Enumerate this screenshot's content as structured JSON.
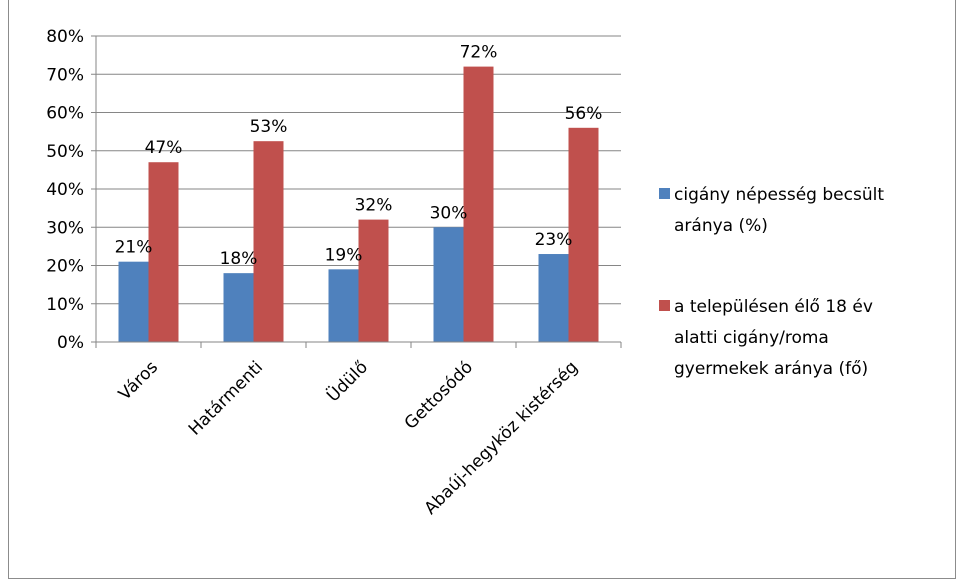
{
  "chart_data": {
    "type": "bar",
    "categories": [
      "Város",
      "Határmenti",
      "Üdülő",
      "Gettosódó",
      "Abaúj-hegyköz kistérség"
    ],
    "series": [
      {
        "name": "cigány népesség becsült aránya (%)",
        "legend_lines": [
          "cigány népesség becsült",
          "aránya (%)"
        ],
        "color": "#4f81bd",
        "values": [
          21,
          18,
          19,
          30,
          23
        ],
        "data_labels": [
          "21%",
          "18%",
          "19%",
          "30%",
          "23%"
        ]
      },
      {
        "name": "a településen élő 18 év alatti cigány/roma gyermekek aránya (fő)",
        "legend_lines": [
          "a településen élő 18 év",
          "alatti cigány/roma",
          "gyermekek aránya (fő)"
        ],
        "color": "#c0504d",
        "values": [
          47,
          52.5,
          32,
          72,
          56
        ],
        "data_labels": [
          "47%",
          "53%",
          "32%",
          "72%",
          "56%"
        ]
      }
    ],
    "ylim": [
      0,
      80
    ],
    "yticks": [
      0,
      10,
      20,
      30,
      40,
      50,
      60,
      70,
      80
    ],
    "ytick_labels": [
      "0%",
      "10%",
      "20%",
      "30%",
      "40%",
      "50%",
      "60%",
      "70%",
      "80%"
    ],
    "grid": true,
    "legend_position": "right",
    "title": "",
    "xlabel": "",
    "ylabel": ""
  }
}
